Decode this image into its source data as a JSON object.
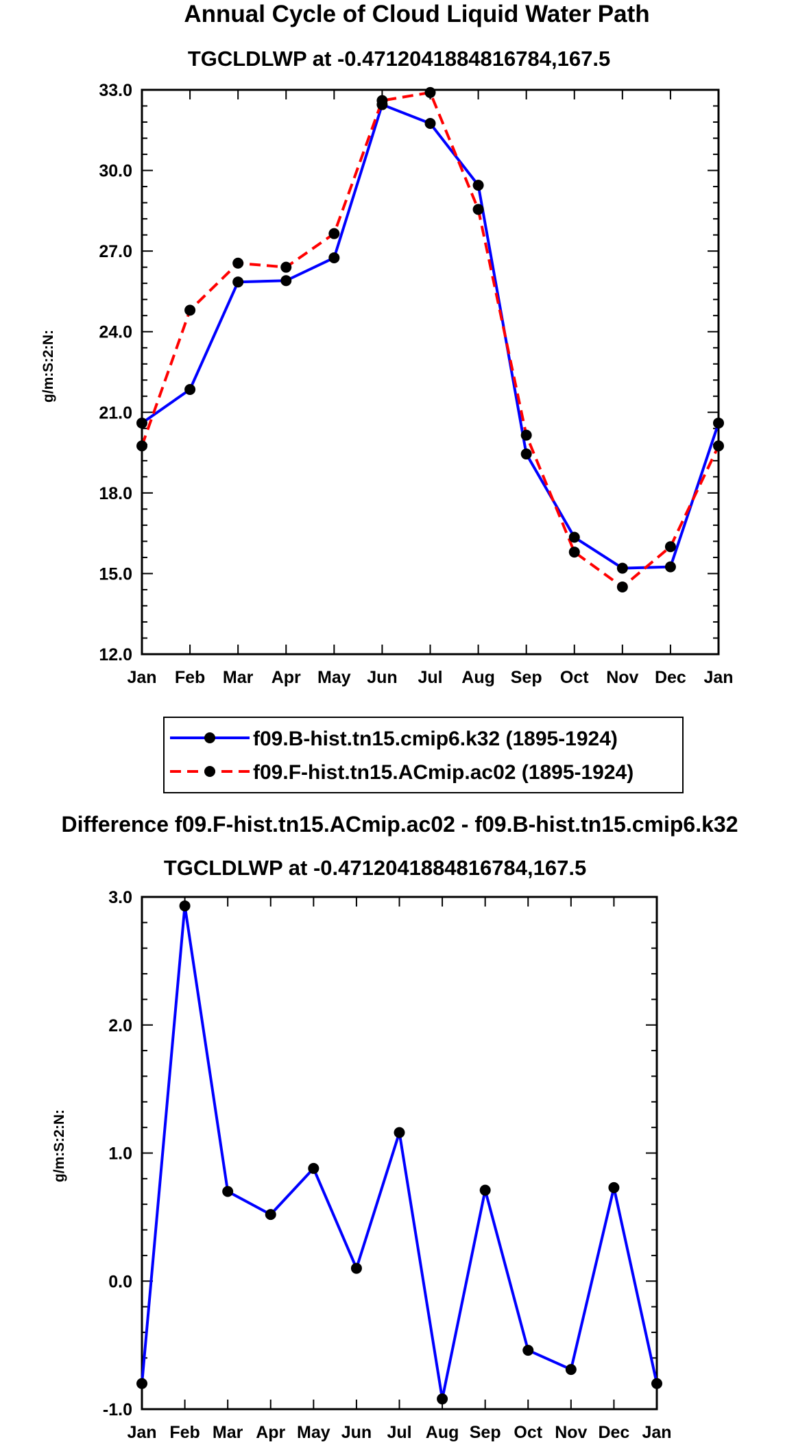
{
  "chart_data": [
    {
      "type": "line",
      "title": "Annual Cycle of Cloud Liquid Water Path",
      "subtitle": "TGCLDLWP at -0.4712041884816784,167.5",
      "ylabel": "g/m:S:2:N:",
      "xlabel": "",
      "ylim": [
        12.0,
        33.0
      ],
      "yticks": [
        "12.0",
        "15.0",
        "18.0",
        "21.0",
        "24.0",
        "27.0",
        "30.0",
        "33.0"
      ],
      "ytick_values": [
        12,
        15,
        18,
        21,
        24,
        27,
        30,
        33
      ],
      "categories": [
        "Jan",
        "Feb",
        "Mar",
        "Apr",
        "May",
        "Jun",
        "Jul",
        "Aug",
        "Sep",
        "Oct",
        "Nov",
        "Dec",
        "Jan"
      ],
      "series": [
        {
          "name": "f09.B-hist.tn15.cmip6.k32 (1895-1924)",
          "color": "#0000ff",
          "dash": "solid",
          "values": [
            20.6,
            21.85,
            25.85,
            25.9,
            26.75,
            32.45,
            31.75,
            29.45,
            19.45,
            16.35,
            15.2,
            15.25,
            20.6
          ]
        },
        {
          "name": "f09.F-hist.tn15.ACmip.ac02 (1895-1924)",
          "color": "#ff0000",
          "dash": "dashed",
          "values": [
            19.75,
            24.8,
            26.55,
            26.4,
            27.65,
            32.6,
            32.9,
            28.55,
            20.15,
            15.8,
            14.5,
            16.0,
            19.75
          ]
        }
      ],
      "legend_position": "below"
    },
    {
      "type": "line",
      "title": "Difference f09.F-hist.tn15.ACmip.ac02 - f09.B-hist.tn15.cmip6.k32",
      "subtitle": "TGCLDLWP at -0.4712041884816784,167.5",
      "ylabel": "g/m:S:2:N:",
      "xlabel": "",
      "ylim": [
        -1.0,
        3.0
      ],
      "yticks": [
        "-1.0",
        "0.0",
        "1.0",
        "2.0",
        "3.0"
      ],
      "ytick_values": [
        -1,
        0,
        1,
        2,
        3
      ],
      "categories": [
        "Jan",
        "Feb",
        "Mar",
        "Apr",
        "May",
        "Jun",
        "Jul",
        "Aug",
        "Sep",
        "Oct",
        "Nov",
        "Dec",
        "Jan"
      ],
      "series": [
        {
          "name": "difference",
          "color": "#0000ff",
          "dash": "solid",
          "values": [
            -0.8,
            2.93,
            0.7,
            0.52,
            0.88,
            0.1,
            1.16,
            -0.92,
            0.71,
            -0.54,
            -0.69,
            0.73,
            -0.8
          ]
        }
      ]
    }
  ]
}
